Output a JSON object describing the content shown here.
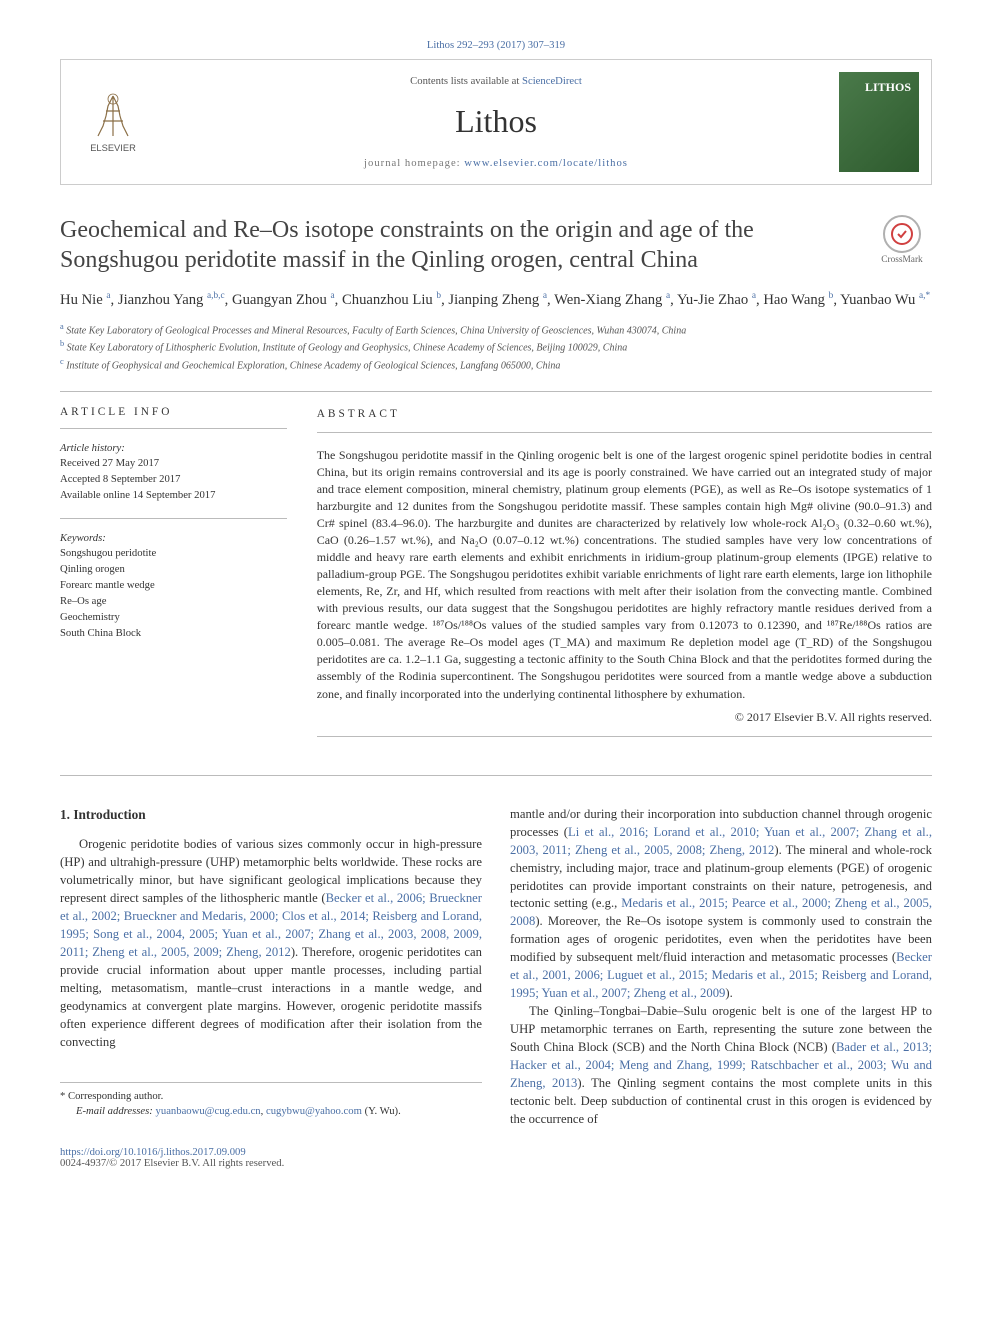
{
  "citation": "Lithos 292–293 (2017) 307–319",
  "header": {
    "contents_text": "Contents lists available at ",
    "contents_link": "ScienceDirect",
    "journal_name": "Lithos",
    "homepage_label": "journal homepage: ",
    "homepage_url": "www.elsevier.com/locate/lithos",
    "publisher_name": "ELSEVIER",
    "cover_text": "LITHOS"
  },
  "crossmark": "CrossMark",
  "title": "Geochemical and Re–Os isotope constraints on the origin and age of the Songshugou peridotite massif in the Qinling orogen, central China",
  "authors": [
    {
      "name": "Hu Nie",
      "aff": "a"
    },
    {
      "name": "Jianzhou Yang",
      "aff": "a,b,c"
    },
    {
      "name": "Guangyan Zhou",
      "aff": "a"
    },
    {
      "name": "Chuanzhou Liu",
      "aff": "b"
    },
    {
      "name": "Jianping Zheng",
      "aff": "a"
    },
    {
      "name": "Wen-Xiang Zhang",
      "aff": "a"
    },
    {
      "name": "Yu-Jie Zhao",
      "aff": "a"
    },
    {
      "name": "Hao Wang",
      "aff": "b"
    },
    {
      "name": "Yuanbao Wu",
      "aff": "a,*"
    }
  ],
  "affiliations": [
    {
      "sup": "a",
      "text": "State Key Laboratory of Geological Processes and Mineral Resources, Faculty of Earth Sciences, China University of Geosciences, Wuhan 430074, China"
    },
    {
      "sup": "b",
      "text": "State Key Laboratory of Lithospheric Evolution, Institute of Geology and Geophysics, Chinese Academy of Sciences, Beijing 100029, China"
    },
    {
      "sup": "c",
      "text": "Institute of Geophysical and Geochemical Exploration, Chinese Academy of Geological Sciences, Langfang 065000, China"
    }
  ],
  "article_info": {
    "heading": "article info",
    "history_label": "Article history:",
    "history": [
      "Received 27 May 2017",
      "Accepted 8 September 2017",
      "Available online 14 September 2017"
    ],
    "keywords_label": "Keywords:",
    "keywords": [
      "Songshugou peridotite",
      "Qinling orogen",
      "Forearc mantle wedge",
      "Re–Os age",
      "Geochemistry",
      "South China Block"
    ]
  },
  "abstract": {
    "heading": "abstract",
    "text": "The Songshugou peridotite massif in the Qinling orogenic belt is one of the largest orogenic spinel peridotite bodies in central China, but its origin remains controversial and its age is poorly constrained. We have carried out an integrated study of major and trace element composition, mineral chemistry, platinum group elements (PGE), as well as Re–Os isotope systematics of 1 harzburgite and 12 dunites from the Songshugou peridotite massif. These samples contain high Mg# olivine (90.0–91.3) and Cr# spinel (83.4–96.0). The harzburgite and dunites are characterized by relatively low whole-rock Al₂O₃ (0.32–0.60 wt.%), CaO (0.26–1.57 wt.%), and Na₂O (0.07–0.12 wt.%) concentrations. The studied samples have very low concentrations of middle and heavy rare earth elements and exhibit enrichments in iridium-group platinum-group elements (IPGE) relative to palladium-group PGE. The Songshugou peridotites exhibit variable enrichments of light rare earth elements, large ion lithophile elements, Re, Zr, and Hf, which resulted from reactions with melt after their isolation from the convecting mantle. Combined with previous results, our data suggest that the Songshugou peridotites are highly refractory mantle residues derived from a forearc mantle wedge. ¹⁸⁷Os/¹⁸⁸Os values of the studied samples vary from 0.12073 to 0.12390, and ¹⁸⁷Re/¹⁸⁸Os ratios are 0.005–0.081. The average Re–Os model ages (T_MA) and maximum Re depletion model age (T_RD) of the Songshugou peridotites are ca. 1.2–1.1 Ga, suggesting a tectonic affinity to the South China Block and that the peridotites formed during the assembly of the Rodinia supercontinent. The Songshugou peridotites were sourced from a mantle wedge above a subduction zone, and finally incorporated into the underlying continental lithosphere by exhumation.",
    "copyright": "© 2017 Elsevier B.V. All rights reserved."
  },
  "introduction": {
    "heading": "1. Introduction",
    "col1_p1_before": "Orogenic peridotite bodies of various sizes commonly occur in high-pressure (HP) and ultrahigh-pressure (UHP) metamorphic belts worldwide. These rocks are volumetrically minor, but have significant geological implications because they represent direct samples of the lithospheric mantle (",
    "col1_p1_link": "Becker et al., 2006; Brueckner et al., 2002; Brueckner and Medaris, 2000; Clos et al., 2014; Reisberg and Lorand, 1995; Song et al., 2004, 2005; Yuan et al., 2007; Zhang et al., 2003, 2008, 2009, 2011; Zheng et al., 2005, 2009; Zheng, 2012",
    "col1_p1_after": "). Therefore, orogenic peridotites can provide crucial information about upper mantle processes, including partial melting, metasomatism, mantle–crust interactions in a mantle wedge, and geodynamics at convergent plate margins. However, orogenic peridotite massifs often experience different degrees of modification after their isolation from the convecting",
    "col2_p1_before": "mantle and/or during their incorporation into subduction channel through orogenic processes (",
    "col2_p1_link": "Li et al., 2016; Lorand et al., 2010; Yuan et al., 2007; Zhang et al., 2003, 2011; Zheng et al., 2005, 2008; Zheng, 2012",
    "col2_p1_mid1": "). The mineral and whole-rock chemistry, including major, trace and platinum-group elements (PGE) of orogenic peridotites can provide important constraints on their nature, petrogenesis, and tectonic setting (e.g., ",
    "col2_p1_link2": "Medaris et al., 2015; Pearce et al., 2000; Zheng et al., 2005, 2008",
    "col2_p1_mid2": "). Moreover, the Re–Os isotope system is commonly used to constrain the formation ages of orogenic peridotites, even when the peridotites have been modified by subsequent melt/fluid interaction and metasomatic processes (",
    "col2_p1_link3": "Becker et al., 2001, 2006; Luguet et al., 2015; Medaris et al., 2015; Reisberg and Lorand, 1995; Yuan et al., 2007; Zheng et al., 2009",
    "col2_p1_after": ").",
    "col2_p2_before": "The Qinling–Tongbai–Dabie–Sulu orogenic belt is one of the largest HP to UHP metamorphic terranes on Earth, representing the suture zone between the South China Block (SCB) and the North China Block (NCB) (",
    "col2_p2_link": "Bader et al., 2013; Hacker et al., 2004; Meng and Zhang, 1999; Ratschbacher et al., 2003; Wu and Zheng, 2013",
    "col2_p2_after": "). The Qinling segment contains the most complete units in this tectonic belt. Deep subduction of continental crust in this orogen is evidenced by the occurrence of"
  },
  "corresponding": {
    "label": "* Corresponding author.",
    "email_label": "E-mail addresses: ",
    "email1": "yuanbaowu@cug.edu.cn",
    "email2": "cugybwu@yahoo.com",
    "name": "(Y. Wu)."
  },
  "footer": {
    "doi": "https://doi.org/10.1016/j.lithos.2017.09.009",
    "issn_line": "0024-4937/© 2017 Elsevier B.V. All rights reserved."
  },
  "colors": {
    "link": "#4a6fa5",
    "text": "#333333",
    "muted": "#555555",
    "border": "#bbbbbb"
  }
}
